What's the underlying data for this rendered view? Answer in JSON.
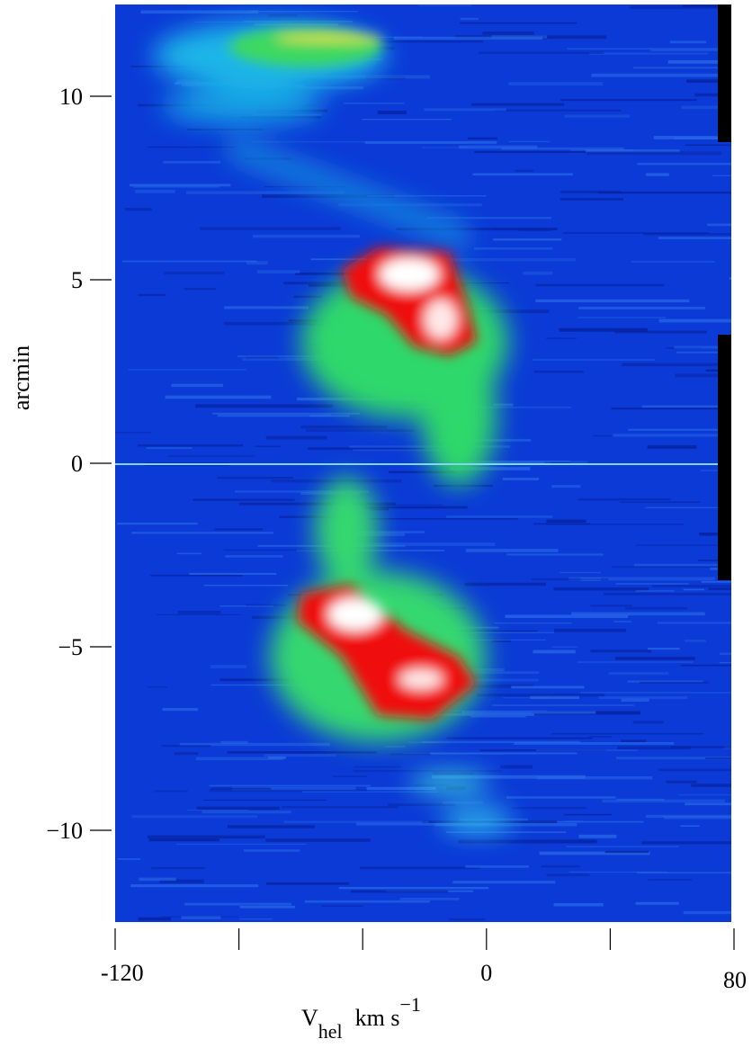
{
  "chart_data": {
    "type": "image",
    "xlabel": {
      "symbol": "V",
      "subscript": "hel",
      "unit": "km s",
      "unit_exponent": "−1"
    },
    "ylabel": "arcmin",
    "xlim": [
      -120,
      80
    ],
    "xticks": [
      -120,
      {
        "value": -80,
        "label": null
      },
      {
        "value": -40,
        "label": null
      },
      0,
      {
        "value": 40,
        "label": null
      },
      80
    ],
    "ylim": [
      -12.5,
      12.5
    ],
    "yticks": [
      {
        "value": -10,
        "label": "−10"
      },
      {
        "value": -5,
        "label": "−5"
      },
      0,
      5,
      10
    ]
  }
}
